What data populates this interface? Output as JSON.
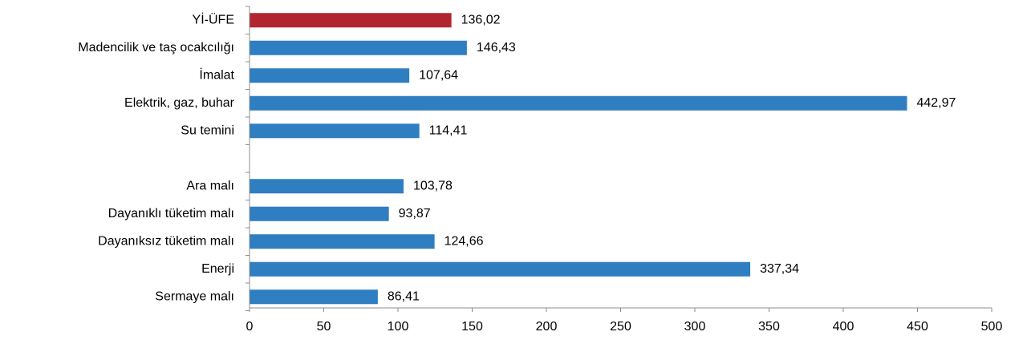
{
  "chart_data": {
    "type": "bar",
    "orientation": "horizontal",
    "title": "",
    "xlabel": "",
    "ylabel": "",
    "xlim": [
      0,
      500
    ],
    "xticks": [
      0,
      50,
      100,
      150,
      200,
      250,
      300,
      350,
      400,
      450,
      500
    ],
    "grid": false,
    "legend": "none",
    "bars": [
      {
        "category": "Yİ-ÜFE",
        "value": 136.02,
        "label": "136,02",
        "color": "#b22530"
      },
      {
        "category": "Madencilik ve taş ocakcılığı",
        "value": 146.43,
        "label": "146,43",
        "color": "#2f7ec1"
      },
      {
        "category": "İmalat",
        "value": 107.64,
        "label": "107,64",
        "color": "#2f7ec1"
      },
      {
        "category": "Elektrik, gaz, buhar",
        "value": 442.97,
        "label": "442,97",
        "color": "#2f7ec1"
      },
      {
        "category": "Su temini",
        "value": 114.41,
        "label": "114,41",
        "color": "#2f7ec1"
      },
      {
        "category": "",
        "value": null,
        "label": "",
        "color": "#2f7ec1"
      },
      {
        "category": "Ara malı",
        "value": 103.78,
        "label": "103,78",
        "color": "#2f7ec1"
      },
      {
        "category": "Dayanıklı tüketim malı",
        "value": 93.87,
        "label": "93,87",
        "color": "#2f7ec1"
      },
      {
        "category": "Dayanıksız tüketim malı",
        "value": 124.66,
        "label": "124,66",
        "color": "#2f7ec1"
      },
      {
        "category": "Enerji",
        "value": 337.34,
        "label": "337,34",
        "color": "#2f7ec1"
      },
      {
        "category": "Sermaye malı",
        "value": 86.41,
        "label": "86,41",
        "color": "#2f7ec1"
      }
    ]
  }
}
